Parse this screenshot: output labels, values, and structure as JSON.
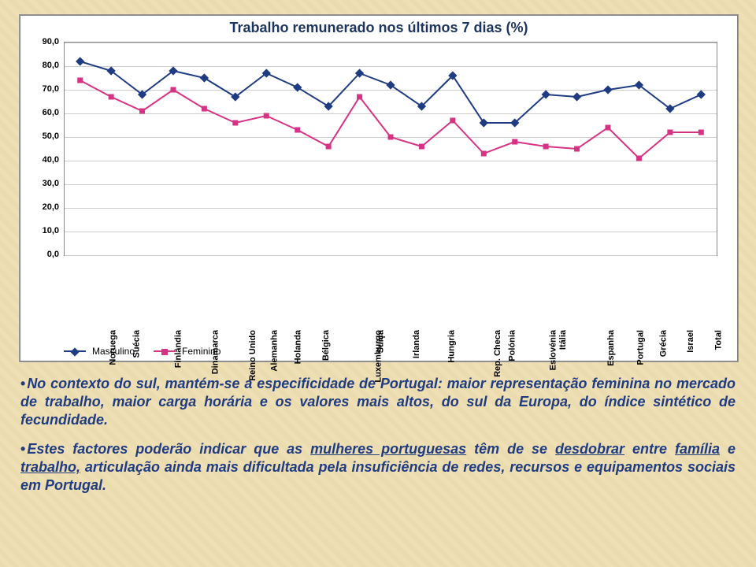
{
  "chart": {
    "type": "line",
    "title": "Trabalho remunerado nos últimos 7 dias (%)",
    "title_fontsize": 18,
    "title_color": "#1c355e",
    "background_color": "#ffffff",
    "grid_color": "#cccccc",
    "axis_color": "#888888",
    "ylim": [
      0,
      90
    ],
    "ytick_step": 10,
    "ytick_format_decimal": true,
    "yticks": [
      "0,0",
      "10,0",
      "20,0",
      "30,0",
      "40,0",
      "50,0",
      "60,0",
      "70,0",
      "80,0",
      "90,0"
    ],
    "categories": [
      "Noruega",
      "Suécia",
      "Finlândia",
      "Dinamarca",
      "Reino Unido",
      "Alemanha",
      "Holanda",
      "Bélgica",
      "Luxemburgo",
      "Suíça",
      "Irlanda",
      "Hungria",
      "Rep. Checa",
      "Polónia",
      "Eslovénia",
      "Itália",
      "Espanha",
      "Portugal",
      "Grécia",
      "Israel",
      "Total"
    ],
    "series": [
      {
        "name": "Masculino",
        "color": "#1f3b82",
        "marker": "diamond",
        "marker_size": 8,
        "line_width": 2,
        "values": [
          82,
          78,
          68,
          78,
          75,
          67,
          77,
          71,
          63,
          77,
          72,
          63,
          76,
          56,
          56,
          68,
          67,
          70,
          72,
          62,
          68
        ]
      },
      {
        "name": "Feminino",
        "color": "#d63384",
        "marker": "square",
        "marker_size": 7,
        "line_width": 2,
        "values": [
          74,
          67,
          61,
          70,
          62,
          56,
          59,
          53,
          46,
          67,
          50,
          46,
          57,
          43,
          48,
          46,
          45,
          54,
          41,
          52,
          52
        ]
      }
    ],
    "legend": {
      "position": "bottom-left",
      "labels": {
        "masculino": "Masculino",
        "feminino": "Feminino"
      }
    },
    "xlabel_fontsize": 11,
    "ylabel_fontsize": 11,
    "fonts": {
      "family": "Verdana, Arial, sans-serif"
    }
  },
  "paragraphs": {
    "p1": "No contexto do sul, mantém-se a especificidade de Portugal: maior representação feminina no mercado de trabalho, maior carga horária e os valores mais altos, do sul da Europa, do índice sintético de fecundidade.",
    "p2_pre": "Estes factores poderão indicar que as ",
    "p2_u1": "mulheres portuguesas",
    "p2_mid1": " têm de se ",
    "p2_u2": "desdobrar",
    "p2_mid2": " entre ",
    "p2_u3": "família",
    "p2_mid3": " e ",
    "p2_u4": "trabalho,",
    "p2_end": " articulação ainda mais dificultada pela insuficiência de redes, recursos e equipamentos sociais em Portugal."
  },
  "page_background": "#eee0b5",
  "text_color": "#1f3b82"
}
